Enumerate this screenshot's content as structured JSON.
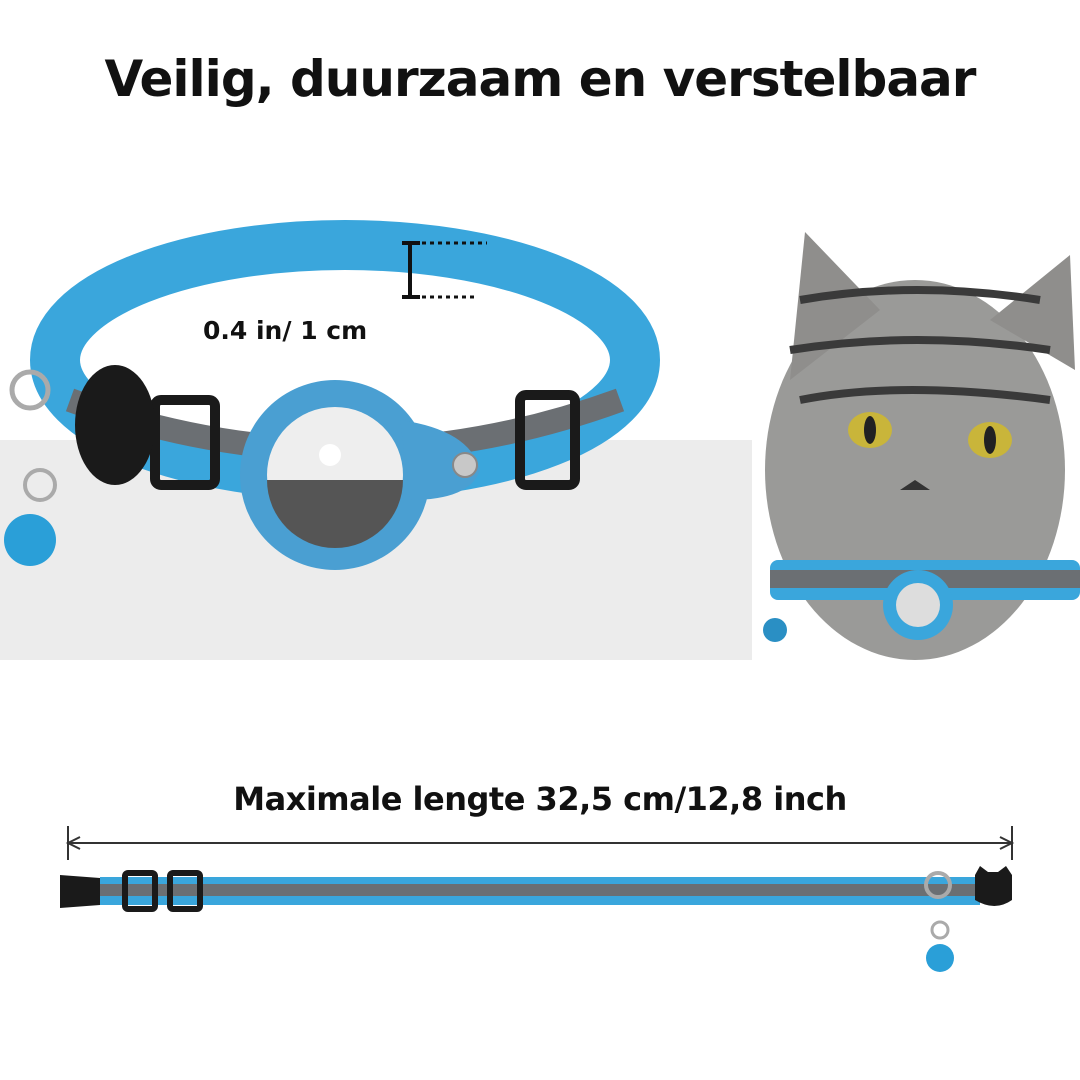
{
  "title": "Veilig, duurzaam en verstelbaar",
  "width_label": "0.4 in/ 1 cm",
  "length_label": "Maximale lengte 32,5 cm/12,8 inch",
  "colors": {
    "collar_blue": "#3aa6dc",
    "reflective_gray": "#6b6f73",
    "buckle_black": "#1a1a1a",
    "background_band": "#ececec"
  }
}
